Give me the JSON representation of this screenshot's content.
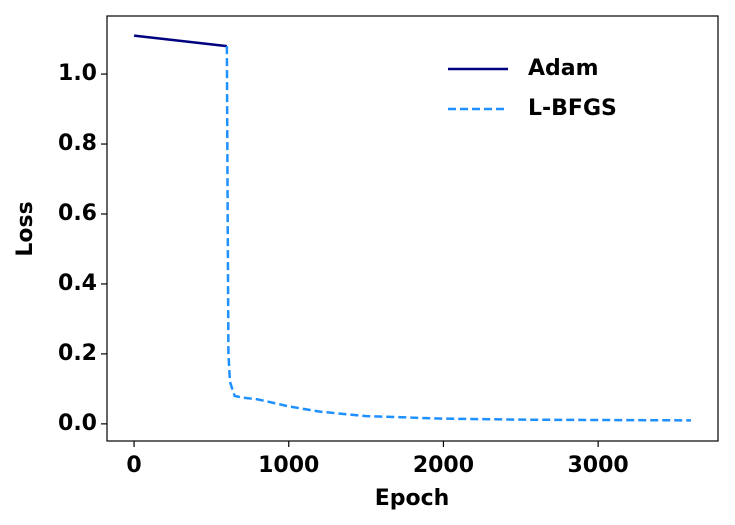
{
  "chart_data": {
    "type": "line",
    "xlabel": "Epoch",
    "ylabel": "Loss",
    "series": [
      {
        "name": "Adam",
        "color": "#000080",
        "dash": "solid",
        "x": [
          0,
          600
        ],
        "values": [
          1.11,
          1.08
        ]
      },
      {
        "name": "L-BFGS",
        "color": "#1e90ff",
        "dash": "dashed",
        "x": [
          600,
          605,
          610,
          620,
          650,
          700,
          800,
          900,
          1000,
          1200,
          1500,
          2000,
          2500,
          3000,
          3600
        ],
        "values": [
          1.08,
          0.6,
          0.2,
          0.12,
          0.08,
          0.075,
          0.07,
          0.06,
          0.05,
          0.035,
          0.022,
          0.015,
          0.012,
          0.011,
          0.01
        ]
      }
    ],
    "xlim": [
      -175,
      3775
    ],
    "xticks": [
      0,
      1000,
      2000,
      3000
    ],
    "ylim": [
      -0.049,
      1.166
    ],
    "yticks": [
      {
        "value": 0,
        "label": "0.0"
      },
      {
        "value": 0.2,
        "label": "0.2"
      },
      {
        "value": 0.4,
        "label": "0.4"
      },
      {
        "value": 0.6,
        "label": "0.6"
      },
      {
        "value": 0.8,
        "label": "0.8"
      },
      {
        "value": 1,
        "label": "1.0"
      }
    ],
    "legend": "upper right",
    "grid": false
  }
}
